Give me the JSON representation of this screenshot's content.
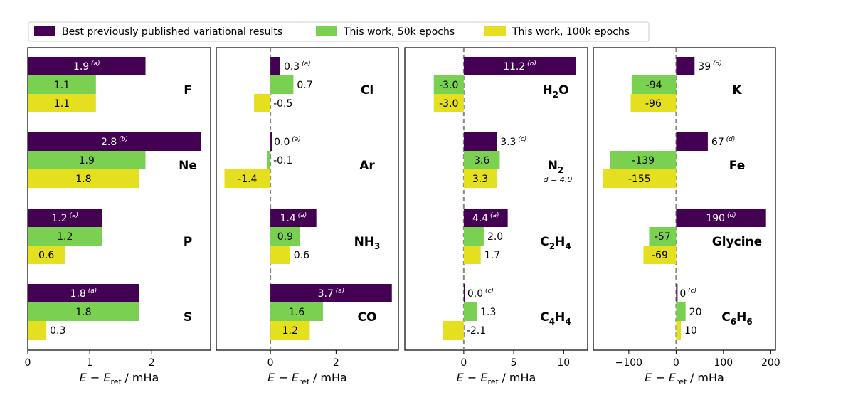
{
  "chart_data": {
    "type": "bar",
    "orientation": "horizontal",
    "legend": {
      "placement": "top",
      "entries": [
        {
          "key": "prev",
          "label": "Best previously published variational results",
          "color": "#440154"
        },
        {
          "key": "w50",
          "label": "This work, 50k epochs",
          "color": "#7ad151"
        },
        {
          "key": "w100",
          "label": "This work, 100k epochs",
          "color": "#e4e01f"
        }
      ]
    },
    "xlabel": {
      "main": "E − E",
      "sub": "ref",
      "unit": " / mHa"
    },
    "panels": [
      {
        "xlim": [
          0,
          2.95
        ],
        "xticks": [
          0,
          1,
          2
        ],
        "zero_line": false,
        "systems": [
          {
            "name": "F",
            "values": [
              1.9,
              1.1,
              1.1
            ],
            "labels": [
              "1.9",
              "1.1",
              "1.1"
            ],
            "notes": [
              "(a)",
              "",
              ""
            ]
          },
          {
            "name": "Ne",
            "values": [
              2.8,
              1.9,
              1.8
            ],
            "labels": [
              "2.8",
              "1.9",
              "1.8"
            ],
            "notes": [
              "(b)",
              "",
              ""
            ]
          },
          {
            "name": "P",
            "values": [
              1.2,
              1.2,
              0.6
            ],
            "labels": [
              "1.2",
              "1.2",
              "0.6"
            ],
            "notes": [
              "(a)",
              "",
              ""
            ]
          },
          {
            "name": "S",
            "values": [
              1.8,
              1.8,
              0.3
            ],
            "labels": [
              "1.8",
              "1.8",
              "0.3"
            ],
            "notes": [
              "(a)",
              "",
              ""
            ]
          }
        ]
      },
      {
        "xlim": [
          -1.65,
          3.9
        ],
        "xticks": [
          0,
          2
        ],
        "zero_line": true,
        "systems": [
          {
            "name": "Cl",
            "values": [
              0.3,
              0.7,
              -0.5
            ],
            "labels": [
              "0.3",
              "0.7",
              "-0.5"
            ],
            "notes": [
              "(a)",
              "",
              ""
            ]
          },
          {
            "name": "Ar",
            "values": [
              0.0,
              -0.1,
              -1.4
            ],
            "labels": [
              "0.0",
              "-0.1",
              "-1.4"
            ],
            "notes": [
              "(a)",
              "",
              ""
            ]
          },
          {
            "name": "NH3",
            "base": "NH",
            "sub": "3",
            "values": [
              1.4,
              0.9,
              0.6
            ],
            "labels": [
              "1.4",
              "0.9",
              "0.6"
            ],
            "notes": [
              "(a)",
              "",
              ""
            ]
          },
          {
            "name": "CO",
            "values": [
              3.7,
              1.6,
              1.2
            ],
            "labels": [
              "3.7",
              "1.6",
              "1.2"
            ],
            "notes": [
              "(a)",
              "",
              ""
            ]
          }
        ]
      },
      {
        "xlim": [
          -5.9,
          12.4
        ],
        "xticks": [
          0,
          5,
          10
        ],
        "zero_line": true,
        "systems": [
          {
            "name": "H2O",
            "base": "H",
            "sub": "2",
            "rest": "O",
            "values": [
              11.2,
              -3.0,
              -3.0
            ],
            "labels": [
              "11.2",
              "-3.0",
              "-3.0"
            ],
            "notes": [
              "(b)",
              "",
              ""
            ]
          },
          {
            "name": "N2",
            "base": "N",
            "sub": "2",
            "extra": "d = 4.0",
            "values": [
              3.3,
              3.6,
              3.3
            ],
            "labels": [
              "3.3",
              "3.6",
              "3.3"
            ],
            "notes": [
              "(c)",
              "",
              ""
            ]
          },
          {
            "name": "C2H4",
            "base": "C",
            "sub": "2",
            "rest": "H",
            "sub2": "4",
            "values": [
              4.4,
              2.0,
              1.7
            ],
            "labels": [
              "4.4",
              "2.0",
              "1.7"
            ],
            "notes": [
              "(a)",
              "",
              ""
            ]
          },
          {
            "name": "C4H4",
            "base": "C",
            "sub": "4",
            "rest": "H",
            "sub2": "4",
            "values": [
              0.0,
              1.3,
              -2.1
            ],
            "labels": [
              "0.0",
              "1.3",
              "-2.1"
            ],
            "notes": [
              "(c)",
              "",
              ""
            ]
          }
        ]
      },
      {
        "xlim": [
          -175,
          210
        ],
        "xticks": [
          -100,
          0,
          100,
          200
        ],
        "xtick_labels": [
          "−100",
          "0",
          "100",
          "200"
        ],
        "zero_line": true,
        "systems": [
          {
            "name": "K",
            "values": [
              39,
              -94,
              -96
            ],
            "labels": [
              "39",
              "-94",
              "-96"
            ],
            "notes": [
              "(d)",
              "",
              ""
            ]
          },
          {
            "name": "Fe",
            "values": [
              67,
              -139,
              -155
            ],
            "labels": [
              "67",
              "-139",
              "-155"
            ],
            "notes": [
              "(d)",
              "",
              ""
            ]
          },
          {
            "name": "Glycine",
            "values": [
              190,
              -57,
              -69
            ],
            "labels": [
              "190",
              "-57",
              "-69"
            ],
            "notes": [
              "(d)",
              "",
              ""
            ]
          },
          {
            "name": "C6H6",
            "base": "C",
            "sub": "6",
            "rest": "H",
            "sub2": "6",
            "values": [
              0,
              20,
              10
            ],
            "labels": [
              "0",
              "20",
              "10"
            ],
            "notes": [
              "(c)",
              "",
              ""
            ]
          }
        ]
      }
    ]
  }
}
